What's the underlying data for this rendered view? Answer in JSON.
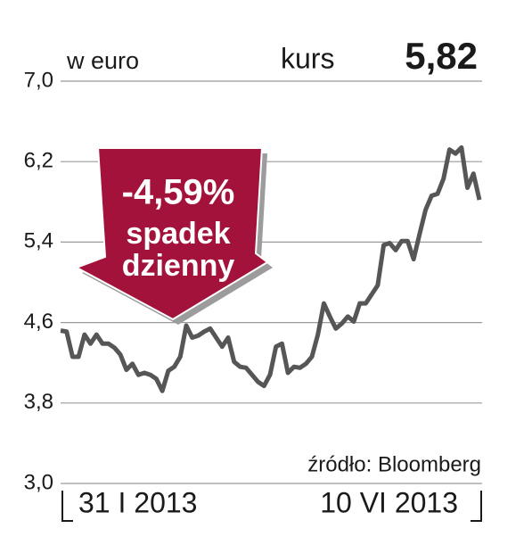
{
  "chart_data": {
    "type": "line",
    "unit_label": "w euro",
    "current_label": "kurs",
    "current_value_label": "5,82",
    "annotation": [
      "-4,59%",
      "spadek",
      "dzienny"
    ],
    "source": "źródło: Bloomberg",
    "categories": [
      "31 I 2013",
      null,
      null,
      null,
      null,
      null,
      null,
      null,
      null,
      null,
      null,
      null,
      null,
      null,
      null,
      null,
      null,
      null,
      null,
      null,
      null,
      null,
      null,
      null,
      null,
      null,
      null,
      null,
      null,
      null,
      null,
      null,
      null,
      null,
      null,
      null,
      null,
      null,
      null,
      null,
      null,
      null,
      null,
      null,
      null,
      null,
      null,
      null,
      null,
      null,
      null,
      null,
      null,
      null,
      null,
      null,
      null,
      null,
      null,
      null,
      null,
      null,
      null,
      null,
      null,
      null,
      null,
      null,
      null,
      null,
      "10 VI 2013"
    ],
    "series": [
      {
        "color": "#565656",
        "values": [
          4.52,
          4.51,
          4.26,
          4.26,
          4.48,
          4.39,
          4.48,
          4.39,
          4.39,
          4.35,
          4.28,
          4.13,
          4.19,
          4.08,
          4.1,
          4.08,
          4.04,
          3.92,
          4.12,
          4.16,
          4.26,
          4.57,
          4.45,
          4.47,
          4.51,
          4.54,
          4.45,
          4.36,
          4.45,
          4.21,
          4.16,
          4.15,
          4.08,
          4.01,
          3.97,
          4.08,
          4.36,
          4.39,
          4.1,
          4.16,
          4.15,
          4.19,
          4.26,
          4.48,
          4.79,
          4.66,
          4.54,
          4.59,
          4.66,
          4.61,
          4.79,
          4.79,
          4.88,
          4.97,
          5.37,
          5.39,
          5.32,
          5.41,
          5.41,
          5.23,
          5.48,
          5.72,
          5.86,
          5.88,
          6.03,
          6.32,
          6.28,
          6.34,
          5.94,
          6.08,
          5.82
        ]
      }
    ],
    "ylim": [
      3.0,
      7.0
    ],
    "yticks": [
      {
        "value": 3.0,
        "label": "3,0"
      },
      {
        "value": 3.8,
        "label": "3,8"
      },
      {
        "value": 4.6,
        "label": "4,6"
      },
      {
        "value": 5.4,
        "label": "5,4"
      },
      {
        "value": 6.2,
        "label": "6,2"
      },
      {
        "value": 7.0,
        "label": "7,0"
      }
    ],
    "grid": true,
    "annotation_color": "#a3123a"
  }
}
